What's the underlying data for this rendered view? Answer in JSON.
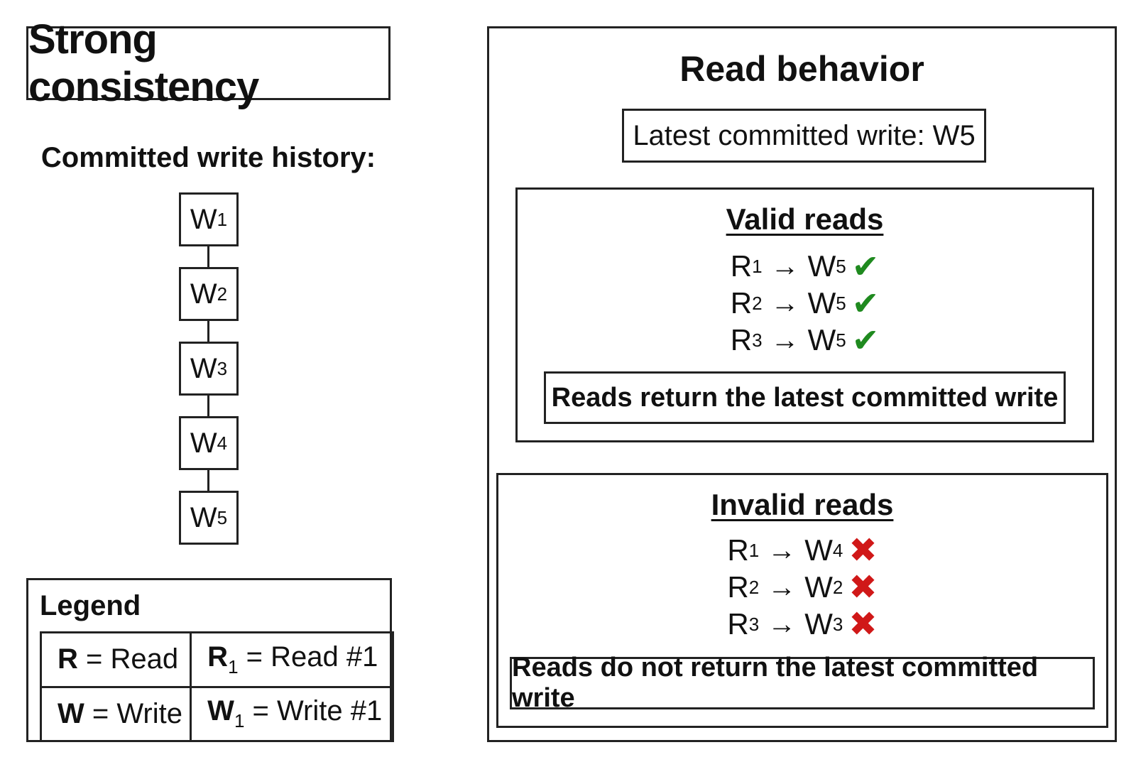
{
  "title": "Strong consistency",
  "history": {
    "label": "Committed write history:",
    "writes": [
      {
        "base": "W",
        "sub": "1"
      },
      {
        "base": "W",
        "sub": "2"
      },
      {
        "base": "W",
        "sub": "3"
      },
      {
        "base": "W",
        "sub": "4"
      },
      {
        "base": "W",
        "sub": "5"
      }
    ]
  },
  "legend": {
    "title": "Legend",
    "rows": [
      [
        {
          "bold": "R",
          "sub": "",
          "text": " = Read"
        },
        {
          "bold": "R",
          "sub": "1",
          "text": " = Read #1"
        }
      ],
      [
        {
          "bold": "W",
          "sub": "",
          "text": " = Write"
        },
        {
          "bold": "W",
          "sub": "1",
          "text": " = Write #1"
        }
      ]
    ]
  },
  "read_behavior": {
    "title": "Read behavior",
    "latest": {
      "text": "Latest committed write: W",
      "sub": "5"
    },
    "valid": {
      "title": "Valid reads",
      "rows": [
        {
          "r": "R",
          "r_sub": "1",
          "arrow": "→",
          "w": "W",
          "w_sub": "5",
          "mark": "✔"
        },
        {
          "r": "R",
          "r_sub": "2",
          "arrow": "→",
          "w": "W",
          "w_sub": "5",
          "mark": "✔"
        },
        {
          "r": "R",
          "r_sub": "3",
          "arrow": "→",
          "w": "W",
          "w_sub": "5",
          "mark": "✔"
        }
      ],
      "summary": "Reads return the latest committed write"
    },
    "invalid": {
      "title": "Invalid reads",
      "rows": [
        {
          "r": "R",
          "r_sub": "1",
          "arrow": "→",
          "w": "W",
          "w_sub": "4",
          "mark": "✖"
        },
        {
          "r": "R",
          "r_sub": "2",
          "arrow": "→",
          "w": "W",
          "w_sub": "2",
          "mark": "✖"
        },
        {
          "r": "R",
          "r_sub": "3",
          "arrow": "→",
          "w": "W",
          "w_sub": "3",
          "mark": "✖"
        }
      ],
      "summary": "Reads do not return the latest committed write"
    }
  },
  "colors": {
    "valid_mark": "#1f8a1f",
    "invalid_mark": "#d01818"
  }
}
